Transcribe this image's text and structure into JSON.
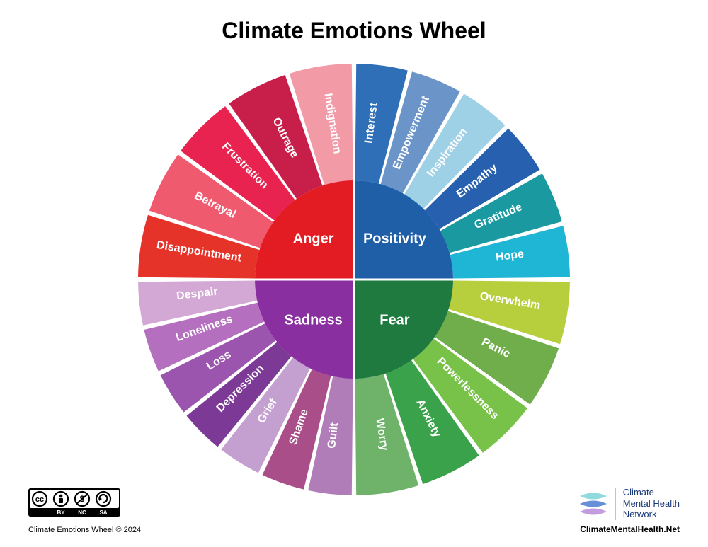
{
  "title": "Climate Emotions Wheel",
  "wheel": {
    "type": "radial-pie",
    "outer_radius": 305,
    "inner_radius": 140,
    "gap_deg": 1.2,
    "divider_color": "#ffffff",
    "outer_label_color": "#ffffff",
    "outer_label_fontsize": 16,
    "inner_label_color": "#ffffff",
    "inner_label_fontsize": 20,
    "inner_label_fontweight": 600,
    "quadrants": [
      {
        "name": "Anger",
        "label": "Anger",
        "center_color": "#e31b23",
        "start_deg": -180,
        "end_deg": -90,
        "slices": [
          {
            "label": "Disappointment",
            "color": "#e6332a"
          },
          {
            "label": "Betrayal",
            "color": "#ef5a6f"
          },
          {
            "label": "Frustration",
            "color": "#e8234f"
          },
          {
            "label": "Outrage",
            "color": "#c81e4a"
          },
          {
            "label": "Indignation",
            "color": "#f39aa7"
          }
        ]
      },
      {
        "name": "Positivity",
        "label": "Positivity",
        "center_color": "#1f5fa8",
        "start_deg": -90,
        "end_deg": 0,
        "slices": [
          {
            "label": "Interest",
            "color": "#2f6fb7"
          },
          {
            "label": "Empowerment",
            "color": "#6b95c9"
          },
          {
            "label": "Inspiration",
            "color": "#9ed0e6"
          },
          {
            "label": "Empathy",
            "color": "#2860b0"
          },
          {
            "label": "Gratitude",
            "color": "#1a9aa0"
          },
          {
            "label": "Hope",
            "color": "#1fb6d6"
          }
        ]
      },
      {
        "name": "Fear",
        "label": "Fear",
        "center_color": "#1e7a3e",
        "start_deg": 0,
        "end_deg": 90,
        "slices": [
          {
            "label": "Overwhelm",
            "color": "#b7cf3c"
          },
          {
            "label": "Panic",
            "color": "#6fae4a"
          },
          {
            "label": "Powerlessness",
            "color": "#79c24a"
          },
          {
            "label": "Anxiety",
            "color": "#3aa24a"
          },
          {
            "label": "Worry",
            "color": "#6fb26a"
          }
        ]
      },
      {
        "name": "Sadness",
        "label": "Sadness",
        "center_color": "#8a2fa0",
        "start_deg": 90,
        "end_deg": 180,
        "slices": [
          {
            "label": "Guilt",
            "color": "#b07db8"
          },
          {
            "label": "Shame",
            "color": "#a94e88"
          },
          {
            "label": "Grief",
            "color": "#c3a0cf"
          },
          {
            "label": "Depression",
            "color": "#7c3a96"
          },
          {
            "label": "Loss",
            "color": "#9b55af"
          },
          {
            "label": "Loneliness",
            "color": "#b56fbf"
          },
          {
            "label": "Despair",
            "color": "#d3a8d4"
          }
        ]
      }
    ]
  },
  "footer": {
    "copyright": "Climate Emotions Wheel © 2024",
    "cc": {
      "by": "BY",
      "nc": "NC",
      "sa": "SA"
    },
    "org_name_line1": "Climate",
    "org_name_line2": "Mental Health",
    "org_name_line3": "Network",
    "org_url": "ClimateMentalHealth.Net",
    "org_logo_colors": [
      "#7dd3d8",
      "#4a7bd0",
      "#b98bd9"
    ]
  }
}
